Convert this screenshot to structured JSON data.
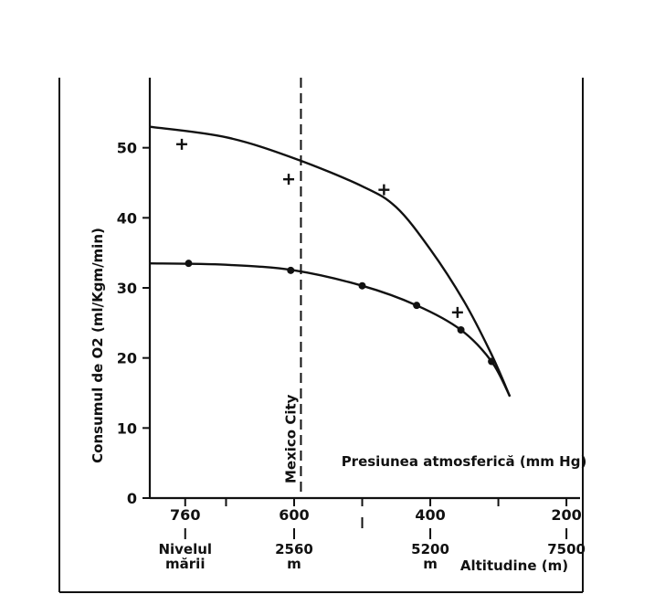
{
  "chart_data": {
    "type": "line",
    "title": "",
    "ylabel": "Consumul de O2 (ml/Kgm/min)",
    "xlabel_pressure": "Presiunea atmosferică (mm Hg)",
    "xlabel_altitude": "Altitudine (m)",
    "x_unit": "mm Hg",
    "xlim": [
      812,
      180
    ],
    "ylim": [
      0,
      60
    ],
    "y_ticks": [
      0,
      10,
      20,
      30,
      40,
      50
    ],
    "x_ticks": [
      760,
      600,
      400,
      200
    ],
    "x_minor_ticks": [
      700,
      500,
      300
    ],
    "altitude_labels": [
      {
        "pressure": 760,
        "line1": "Nivelul",
        "line2": "mării"
      },
      {
        "pressure": 600,
        "line1": "2560",
        "line2": "m"
      },
      {
        "pressure": 400,
        "line1": "5200",
        "line2": "m"
      },
      {
        "pressure": 200,
        "line1": "7500",
        "line2": ""
      }
    ],
    "reference_line": {
      "pressure": 590,
      "label": "Mexico City"
    },
    "series": [
      {
        "marker": "plus",
        "points": [
          {
            "x": 765,
            "y": 50.5
          },
          {
            "x": 608,
            "y": 45.5
          },
          {
            "x": 468,
            "y": 44.0
          },
          {
            "x": 360,
            "y": 26.5
          }
        ],
        "curve": [
          {
            "x": 812,
            "y": 53.0
          },
          {
            "x": 700,
            "y": 51.5
          },
          {
            "x": 600,
            "y": 48.5
          },
          {
            "x": 500,
            "y": 44.5
          },
          {
            "x": 450,
            "y": 41.5
          },
          {
            "x": 400,
            "y": 35.5
          },
          {
            "x": 350,
            "y": 28.0
          },
          {
            "x": 310,
            "y": 20.5
          },
          {
            "x": 283,
            "y": 14.5
          }
        ]
      },
      {
        "marker": "dot",
        "points": [
          {
            "x": 755,
            "y": 33.5
          },
          {
            "x": 605,
            "y": 32.5
          },
          {
            "x": 500,
            "y": 30.3
          },
          {
            "x": 420,
            "y": 27.5
          },
          {
            "x": 355,
            "y": 24.0
          },
          {
            "x": 310,
            "y": 19.5
          }
        ],
        "curve": [
          {
            "x": 812,
            "y": 33.5
          },
          {
            "x": 700,
            "y": 33.3
          },
          {
            "x": 600,
            "y": 32.5
          },
          {
            "x": 500,
            "y": 30.3
          },
          {
            "x": 420,
            "y": 27.5
          },
          {
            "x": 355,
            "y": 24.0
          },
          {
            "x": 310,
            "y": 19.5
          },
          {
            "x": 283,
            "y": 14.5
          }
        ]
      }
    ]
  }
}
